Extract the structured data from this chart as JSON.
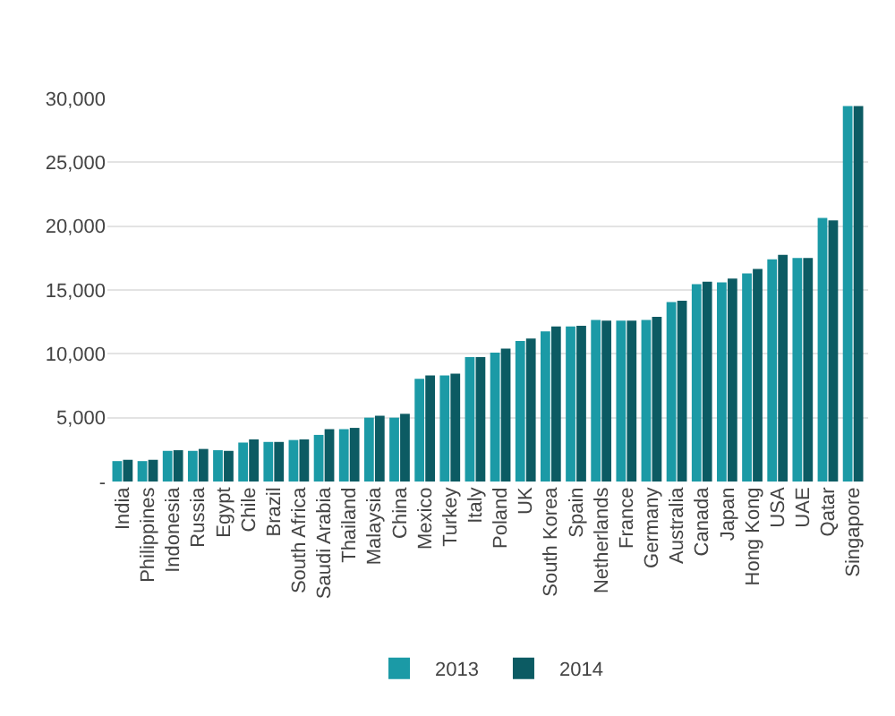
{
  "chart_data": {
    "type": "bar",
    "categories": [
      "India",
      "Philippines",
      "Indonesia",
      "Russia",
      "Egypt",
      "Chile",
      "Brazil",
      "South Africa",
      "Saudi Arabia",
      "Thailand",
      "Malaysia",
      "China",
      "Mexico",
      "Turkey",
      "Italy",
      "Poland",
      "UK",
      "South Korea",
      "Spain",
      "Netherlands",
      "France",
      "Germany",
      "Australia",
      "Canada",
      "Japan",
      "Hong Kong",
      "USA",
      "UAE",
      "Qatar",
      "Singapore"
    ],
    "series": [
      {
        "name": "2013",
        "color": "#1b9aa6",
        "values": [
          1600,
          1600,
          2400,
          2400,
          2450,
          3050,
          3100,
          3250,
          3650,
          4100,
          5000,
          5000,
          8050,
          8300,
          9750,
          10100,
          11000,
          11750,
          12150,
          12650,
          12600,
          12650,
          14050,
          15450,
          15600,
          16300,
          17400,
          17500,
          20650,
          29400
        ]
      },
      {
        "name": "2014",
        "color": "#0c5b63",
        "values": [
          1700,
          1700,
          2450,
          2550,
          2400,
          3300,
          3100,
          3300,
          4100,
          4200,
          5150,
          5300,
          8300,
          8450,
          9750,
          10400,
          11200,
          12150,
          12200,
          12600,
          12600,
          12900,
          14150,
          15650,
          15900,
          16650,
          17750,
          17500,
          20450,
          29400
        ]
      }
    ],
    "ylim": [
      0,
      30000
    ],
    "yticks": [
      {
        "value": 0,
        "label": "-"
      },
      {
        "value": 5000,
        "label": "5,000"
      },
      {
        "value": 10000,
        "label": "10,000"
      },
      {
        "value": 15000,
        "label": "15,000"
      },
      {
        "value": 20000,
        "label": "20,000"
      },
      {
        "value": 25000,
        "label": "25,000"
      },
      {
        "value": 30000,
        "label": "30,000"
      }
    ],
    "grid": "y",
    "legend": "bottom"
  }
}
